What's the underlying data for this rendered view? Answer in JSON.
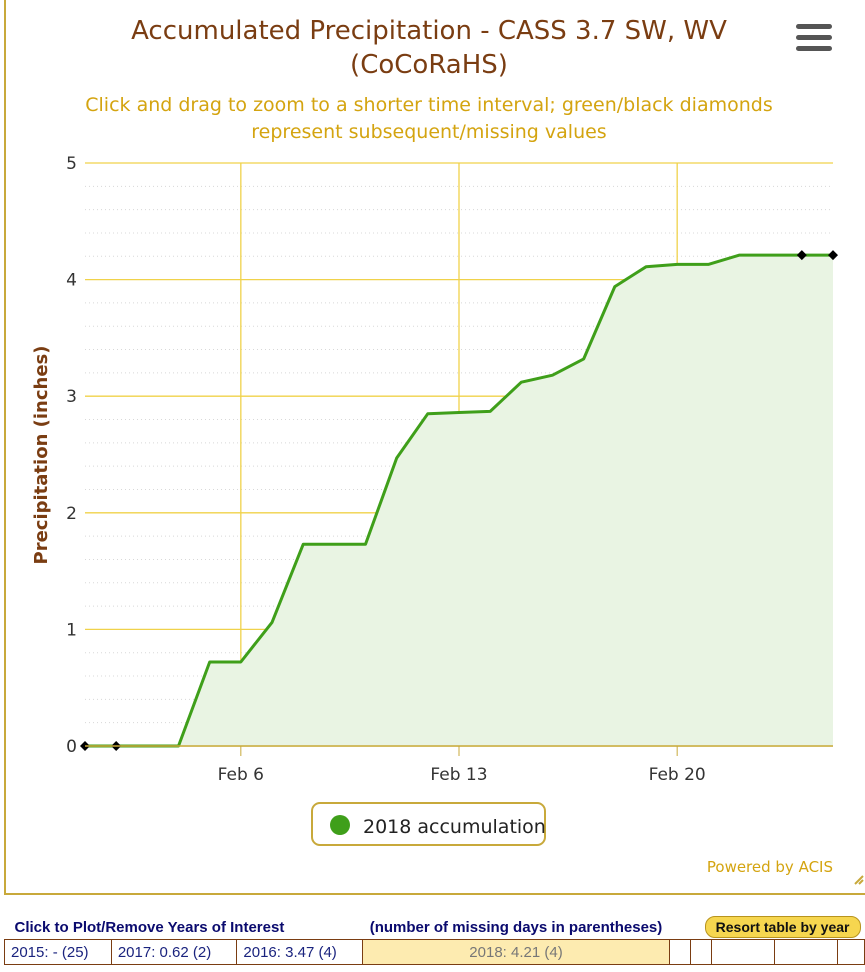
{
  "chart_data": {
    "type": "area",
    "title": "Accumulated Precipitation - CASS 3.7 SW, WV",
    "title_line2": "(CoCoRaHS)",
    "subtitle": "Click and drag to zoom to a shorter time interval; green/black diamonds",
    "subtitle_line2": "represent subsequent/missing values",
    "ylabel": "Precipitation (inches)",
    "xlabel": "",
    "ylim": [
      0,
      5
    ],
    "yticks": [
      0,
      1,
      2,
      3,
      4,
      5
    ],
    "xlim_day": [
      1,
      25
    ],
    "xticks": [
      {
        "day": 6,
        "label": "Feb 6"
      },
      {
        "day": 13,
        "label": "Feb 13"
      },
      {
        "day": 20,
        "label": "Feb 20"
      }
    ],
    "grid": true,
    "legend_position": "bottom-center",
    "series": [
      {
        "name": "2018 accumulation",
        "color": "#3f9f1a",
        "fill": "#e9f4e3",
        "points": [
          {
            "day": 1,
            "value": 0
          },
          {
            "day": 2,
            "value": 0
          },
          {
            "day": 3,
            "value": 0
          },
          {
            "day": 4,
            "value": 0
          },
          {
            "day": 5,
            "value": 0.72
          },
          {
            "day": 6,
            "value": 0.72
          },
          {
            "day": 7,
            "value": 1.06
          },
          {
            "day": 8,
            "value": 1.73
          },
          {
            "day": 9,
            "value": 1.73
          },
          {
            "day": 10,
            "value": 1.73
          },
          {
            "day": 11,
            "value": 2.47
          },
          {
            "day": 12,
            "value": 2.85
          },
          {
            "day": 13,
            "value": 2.86
          },
          {
            "day": 14,
            "value": 2.87
          },
          {
            "day": 15,
            "value": 3.12
          },
          {
            "day": 16,
            "value": 3.18
          },
          {
            "day": 17,
            "value": 3.32
          },
          {
            "day": 18,
            "value": 3.94
          },
          {
            "day": 19,
            "value": 4.11
          },
          {
            "day": 20,
            "value": 4.13
          },
          {
            "day": 21,
            "value": 4.13
          },
          {
            "day": 22,
            "value": 4.21
          },
          {
            "day": 23,
            "value": 4.21
          },
          {
            "day": 24,
            "value": 4.21
          },
          {
            "day": 25,
            "value": 4.21
          }
        ]
      }
    ],
    "missing_markers": [
      {
        "day": 1,
        "value": 0
      },
      {
        "day": 2,
        "value": 0
      },
      {
        "day": 24,
        "value": 4.21
      },
      {
        "day": 25,
        "value": 4.21
      }
    ],
    "credit": "Powered by ACIS"
  },
  "colors": {
    "gridline": "#f0d24a",
    "axis_line": "#c8a93b",
    "title": "#7a3d12",
    "subtitle": "#d4a410"
  },
  "menu_icon": "hamburger-menu-icon",
  "years_table": {
    "header_left": "Click to Plot/Remove Years of Interest",
    "header_middle": "(number of missing days in parentheses)",
    "resort_label": "Resort table by year",
    "years": [
      {
        "label": "2015: - (25)",
        "active": false
      },
      {
        "label": "2017: 0.62 (2)",
        "active": false
      },
      {
        "label": "2016: 3.47 (4)",
        "active": false
      },
      {
        "label": "2018: 4.21 (4)",
        "active": true
      }
    ]
  }
}
